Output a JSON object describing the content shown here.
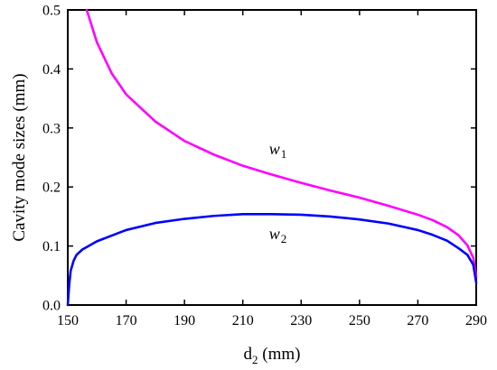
{
  "chart_data": {
    "type": "line",
    "xlabel": "d",
    "xlabel_subscript": "2",
    "xlabel_unit": " (mm)",
    "ylabel": "Cavity mode sizes (mm)",
    "xlim": [
      150,
      290
    ],
    "ylim": [
      0.0,
      0.5
    ],
    "xticks": [
      150,
      170,
      190,
      210,
      230,
      250,
      270,
      290
    ],
    "yticks": [
      0.0,
      0.1,
      0.2,
      0.3,
      0.4,
      0.5
    ],
    "ytick_labels": [
      "0.0",
      "0.1",
      "0.2",
      "0.3",
      "0.4",
      "0.5"
    ],
    "grid": false,
    "series": [
      {
        "name": "w",
        "subscript": "1",
        "color": "#ff00ff",
        "x": [
          156.5,
          160,
          165,
          170,
          180,
          190,
          200,
          210,
          220,
          230,
          240,
          250,
          260,
          270,
          275,
          280,
          284,
          287,
          289,
          290
        ],
        "y": [
          0.5,
          0.445,
          0.393,
          0.357,
          0.311,
          0.278,
          0.255,
          0.236,
          0.221,
          0.207,
          0.194,
          0.182,
          0.168,
          0.153,
          0.144,
          0.132,
          0.118,
          0.101,
          0.08,
          0.048
        ]
      },
      {
        "name": "w",
        "subscript": "2",
        "color": "#0000ff",
        "x": [
          150,
          150.5,
          151,
          152,
          153,
          155,
          160,
          170,
          180,
          190,
          200,
          210,
          220,
          230,
          240,
          250,
          260,
          270,
          275,
          280,
          284,
          287,
          289,
          290
        ],
        "y": [
          0.0,
          0.035,
          0.058,
          0.075,
          0.085,
          0.094,
          0.108,
          0.127,
          0.139,
          0.146,
          0.151,
          0.154,
          0.154,
          0.153,
          0.15,
          0.145,
          0.138,
          0.127,
          0.119,
          0.109,
          0.096,
          0.085,
          0.068,
          0.038
        ]
      }
    ],
    "annotations": [
      {
        "series_index": 0,
        "text": "w",
        "subscript": "1",
        "x": 219,
        "y": 0.255
      },
      {
        "series_index": 1,
        "text": "w",
        "subscript": "2",
        "x": 219,
        "y": 0.112
      }
    ]
  }
}
